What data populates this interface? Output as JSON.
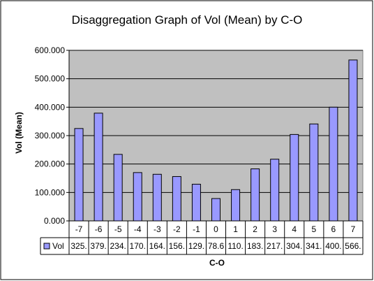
{
  "chart_data": {
    "type": "bar",
    "title": "Disaggregation Graph of Vol (Mean) by C-O",
    "xlabel": "C-O",
    "ylabel": "Vol (Mean)",
    "ylim": [
      0,
      600
    ],
    "y_ticks": [
      "0.000",
      "100.000",
      "200.000",
      "300.000",
      "400.000",
      "500.000",
      "600.000"
    ],
    "grid": true,
    "categories": [
      "-7",
      "-6",
      "-5",
      "-4",
      "-3",
      "-2",
      "-1",
      "0",
      "1",
      "2",
      "3",
      "4",
      "5",
      "6",
      "7"
    ],
    "series": [
      {
        "name": "Vol",
        "values": [
          325,
          379,
          234,
          170,
          164,
          156,
          129,
          78.6,
          110,
          183,
          217,
          304,
          341,
          400,
          566
        ],
        "table_labels": [
          "325.",
          "379.",
          "234.",
          "170.",
          "164.",
          "156.",
          "129.",
          "78.6",
          "110.",
          "183.",
          "217.",
          "304.",
          "341.",
          "400.",
          "566."
        ]
      }
    ],
    "colors": {
      "bar_fill": "#9999ff",
      "plot_background": "#c0c0c0",
      "frame": "#000000"
    }
  }
}
